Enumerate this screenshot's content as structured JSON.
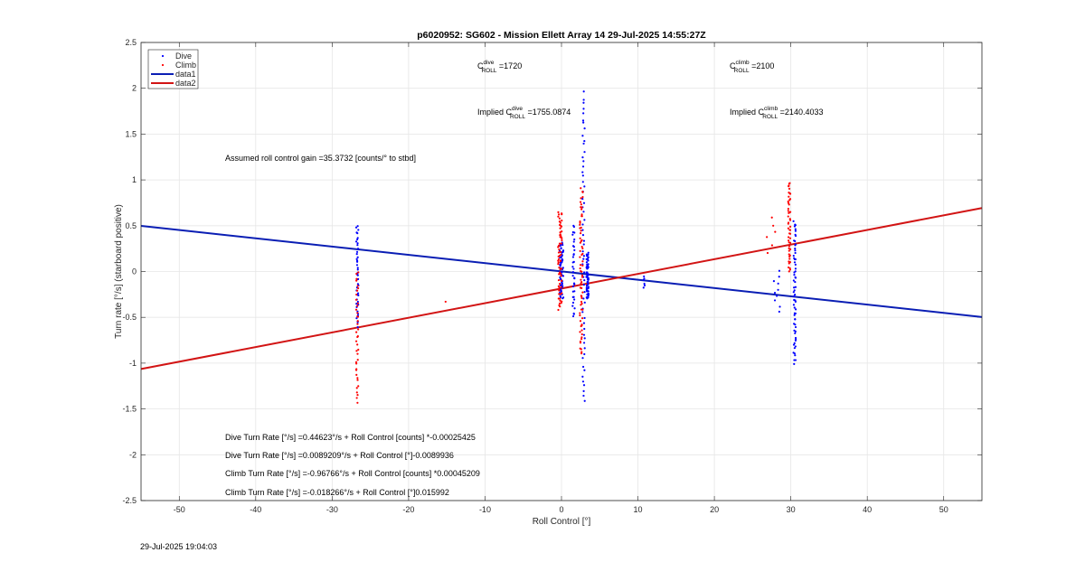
{
  "chart_data": {
    "type": "scatter",
    "title": "p6020952: SG602 - Mission Ellett Array 14 29-Jul-2025 14:55:27Z",
    "xlabel": "Roll Control [°]",
    "ylabel": "Turn rate [°/s] (starboard positive)",
    "xlim": [
      -55,
      55
    ],
    "ylim": [
      -2.5,
      2.5
    ],
    "xticks": [
      -50,
      -40,
      -30,
      -20,
      -10,
      0,
      10,
      20,
      30,
      40,
      50
    ],
    "yticks": [
      -2.5,
      -2,
      -1.5,
      -1,
      -0.5,
      0,
      0.5,
      1,
      1.5,
      2,
      2.5
    ],
    "grid": true,
    "legend": {
      "position": "top-left",
      "entries": [
        "Dive",
        "Climb",
        "data1",
        "data2"
      ]
    },
    "colors": {
      "dive": "#0000ff",
      "climb": "#ff0000",
      "data1": "#0a1eb4",
      "data2": "#d21414"
    },
    "lines": [
      {
        "name": "data1",
        "x": [
          -55,
          55
        ],
        "y": [
          0.4982,
          -0.4966
        ]
      },
      {
        "name": "data2",
        "x": [
          -55,
          55
        ],
        "y": [
          -1.0641,
          0.6932
        ]
      }
    ],
    "scatter_clusters": [
      {
        "name": "Dive",
        "x": -26.7,
        "spread": 0.3,
        "ymin": -0.6,
        "ymax": 0.5,
        "n": 45
      },
      {
        "name": "Dive",
        "x": 0.0,
        "spread": 0.5,
        "ymin": -0.3,
        "ymax": 0.3,
        "n": 70
      },
      {
        "name": "Dive",
        "x": 1.6,
        "spread": 0.3,
        "ymin": -0.5,
        "ymax": 0.5,
        "n": 35
      },
      {
        "name": "Dive",
        "x": 2.9,
        "spread": 0.3,
        "ymin": -1.42,
        "ymax": 1.95,
        "n": 60
      },
      {
        "name": "Dive",
        "x": 3.4,
        "spread": 0.3,
        "ymin": -0.3,
        "ymax": 0.2,
        "n": 70
      },
      {
        "name": "Dive",
        "x": 10.8,
        "spread": 0.2,
        "ymin": -0.17,
        "ymax": -0.05,
        "n": 6
      },
      {
        "name": "Dive",
        "x": 30.5,
        "spread": 0.3,
        "ymin": -1.0,
        "ymax": 0.55,
        "n": 65
      },
      {
        "name": "Dive",
        "x": 28.5,
        "spread": 1.5,
        "ymin": -0.42,
        "ymax": 0.0,
        "n": 10
      },
      {
        "name": "Climb",
        "x": -26.7,
        "spread": 0.3,
        "ymin": -1.42,
        "ymax": 0.0,
        "n": 40
      },
      {
        "name": "Climb",
        "x": -0.2,
        "spread": 0.5,
        "ymin": -0.4,
        "ymax": 0.65,
        "n": 70
      },
      {
        "name": "Climb",
        "x": 2.6,
        "spread": 0.4,
        "ymin": -0.9,
        "ymax": 0.9,
        "n": 70
      },
      {
        "name": "Climb",
        "x": 29.8,
        "spread": 0.3,
        "ymin": 0.0,
        "ymax": 0.98,
        "n": 50
      },
      {
        "name": "Climb",
        "x": 27.5,
        "spread": 1.5,
        "ymin": 0.2,
        "ymax": 0.6,
        "n": 6
      },
      {
        "name": "Climb",
        "x": -15.2,
        "spread": 0.1,
        "ymin": -0.32,
        "ymax": -0.3,
        "n": 1
      }
    ]
  },
  "annotations": {
    "cdive_label": "C",
    "cdive_sup": "dive",
    "cdive_sub": "ROLL",
    "cdive_value": " =1720",
    "cclimb_label": "C",
    "cclimb_sup": "climb",
    "cclimb_sub": "ROLL",
    "cclimb_value": " =2100",
    "implied_dive_prefix": "Implied C",
    "implied_dive_sup": "dive",
    "implied_dive_sub": "ROLL",
    "implied_dive_value": " =1755.0874",
    "implied_climb_prefix": "Implied C",
    "implied_climb_sup": "climb",
    "implied_climb_sub": "ROLL",
    "implied_climb_value": " =2140.4033",
    "gain": "Assumed roll control gain =35.3732 [counts/° to stbd]",
    "fit1": "Dive Turn Rate [°/s] =0.44623°/s + Roll Control [counts] *-0.00025425",
    "fit2": "Dive Turn Rate [°/s] =0.0089209°/s + Roll Control [°]-0.0089936",
    "fit3": "Climb Turn Rate [°/s] =-0.96766°/s + Roll Control [counts] *0.00045209",
    "fit4": "Climb Turn Rate [°/s] =-0.018266°/s + Roll Control [°]0.015992"
  },
  "footer": "29-Jul-2025 19:04:03"
}
